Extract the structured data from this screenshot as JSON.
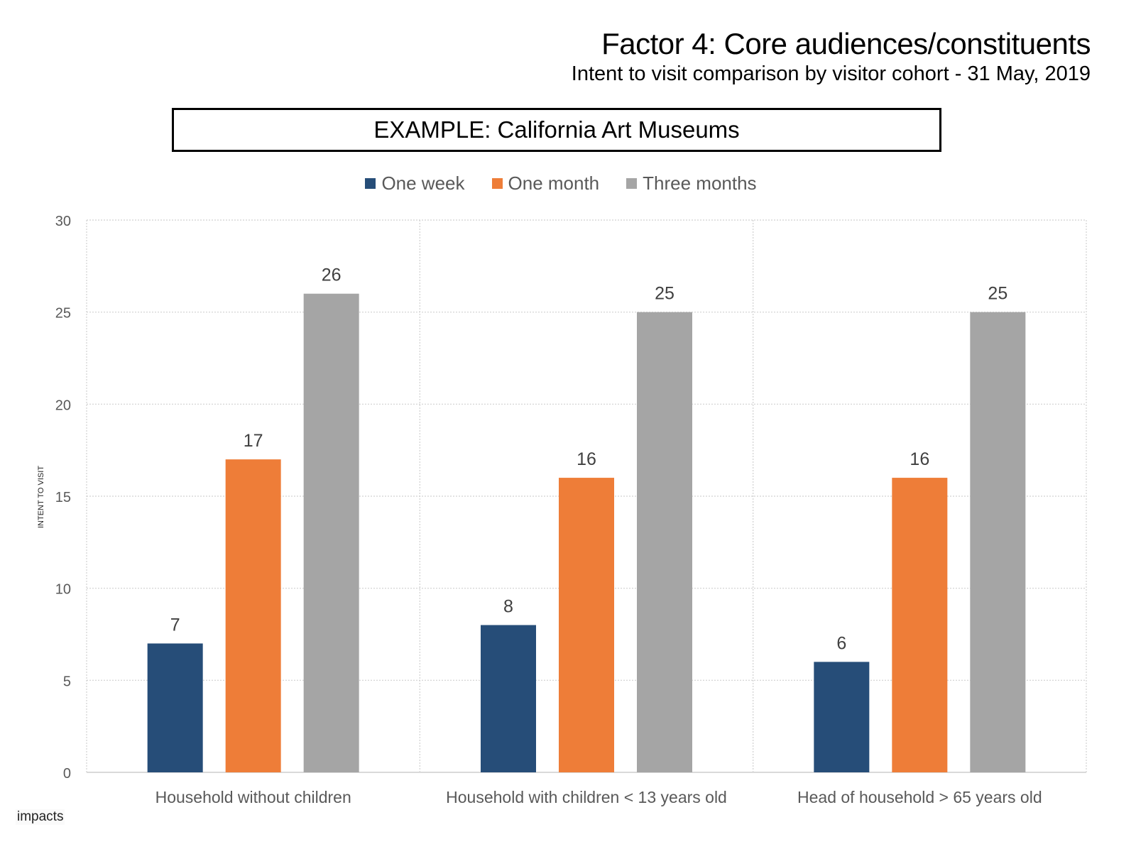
{
  "header": {
    "title": "Factor 4: Core audiences/constituents",
    "subtitle": "Intent to visit comparison by visitor cohort - 31 May, 2019",
    "example_label": "EXAMPLE: California Art Museums"
  },
  "footer": {
    "logo_text": "impacts"
  },
  "chart_data": {
    "type": "bar",
    "title": "EXAMPLE: California Art Museums",
    "xlabel": "",
    "ylabel": "INTENT TO VISIT",
    "ylim": [
      0,
      30
    ],
    "yticks": [
      0,
      5,
      10,
      15,
      20,
      25,
      30
    ],
    "grid": true,
    "legend_position": "top-center",
    "categories": [
      "Household without children",
      "Household with children < 13 years old",
      "Head of household > 65 years old"
    ],
    "series": [
      {
        "name": "One week",
        "color": "#264d78",
        "values": [
          7,
          8,
          6
        ]
      },
      {
        "name": "One month",
        "color": "#ee7d38",
        "values": [
          17,
          16,
          16
        ]
      },
      {
        "name": "Three months",
        "color": "#a5a5a5",
        "values": [
          26,
          25,
          25
        ]
      }
    ]
  }
}
